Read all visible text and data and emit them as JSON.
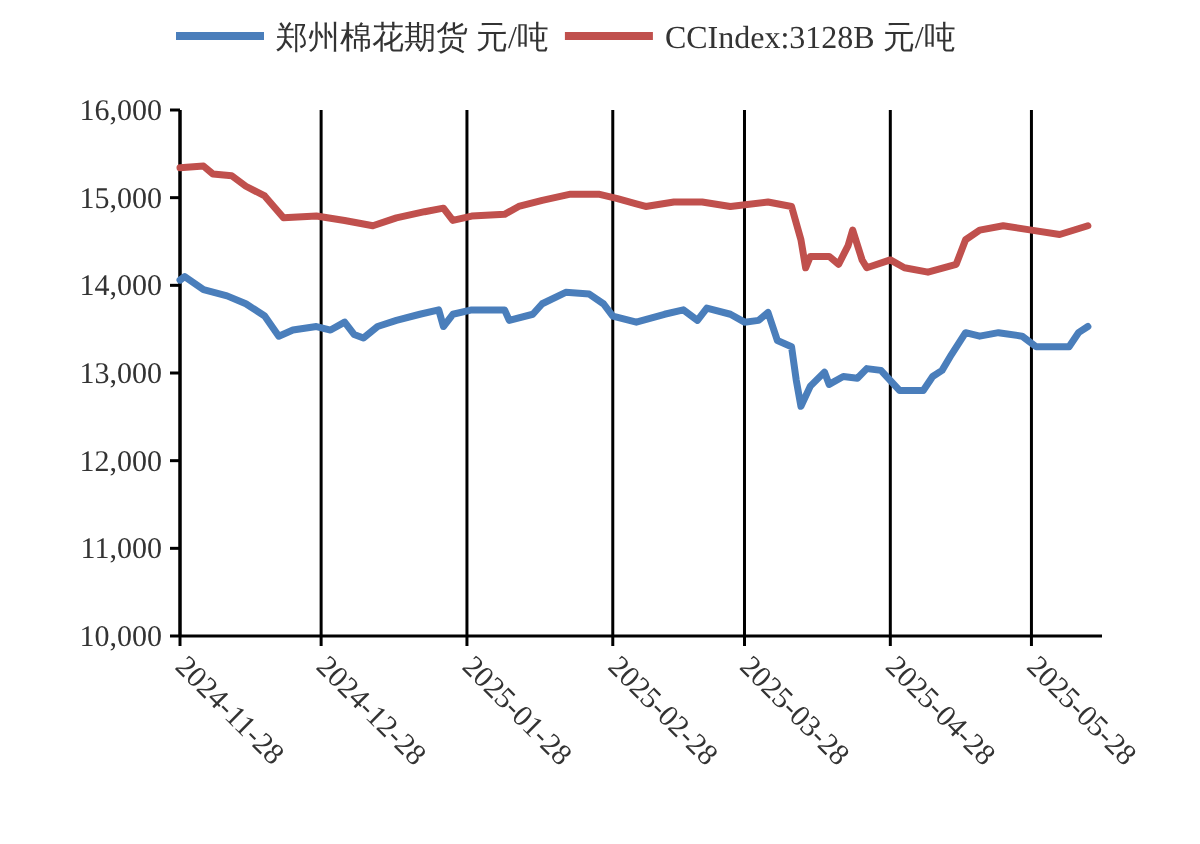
{
  "chart_data": {
    "type": "line",
    "legend": "top",
    "grid": "x",
    "line_style": "solid",
    "marker": "none",
    "xlim": [
      "2024-11-28",
      "2025-06-12"
    ],
    "xticks": [
      {
        "value": "2024-11-28",
        "label": "2024-11-28"
      },
      {
        "value": "2024-12-28",
        "label": "2024-12-28"
      },
      {
        "value": "2025-01-28",
        "label": "2025-01-28"
      },
      {
        "value": "2025-02-28",
        "label": "2025-02-28"
      },
      {
        "value": "2025-03-28",
        "label": "2025-03-28"
      },
      {
        "value": "2025-04-28",
        "label": "2025-04-28"
      },
      {
        "value": "2025-05-28",
        "label": "2025-05-28"
      }
    ],
    "ylim": [
      10000,
      16000
    ],
    "yticks": [
      {
        "value": 10000,
        "label": "10,000"
      },
      {
        "value": 11000,
        "label": "11,000"
      },
      {
        "value": 12000,
        "label": "12,000"
      },
      {
        "value": 13000,
        "label": "13,000"
      },
      {
        "value": 14000,
        "label": "14,000"
      },
      {
        "value": 15000,
        "label": "15,000"
      },
      {
        "value": 16000,
        "label": "16,000"
      }
    ],
    "series": [
      {
        "name": "郑州棉花期货 元/吨",
        "color": "#4a7ebb",
        "x": [
          "2024-11-28",
          "2024-11-29",
          "2024-12-03",
          "2024-12-08",
          "2024-12-12",
          "2024-12-16",
          "2024-12-19",
          "2024-12-22",
          "2024-12-27",
          "2024-12-30",
          "2025-01-02",
          "2025-01-04",
          "2025-01-06",
          "2025-01-09",
          "2025-01-13",
          "2025-01-18",
          "2025-01-22",
          "2025-01-23",
          "2025-01-25",
          "2025-01-29",
          "2025-02-05",
          "2025-02-06",
          "2025-02-11",
          "2025-02-13",
          "2025-02-18",
          "2025-02-23",
          "2025-02-26",
          "2025-02-28",
          "2025-03-05",
          "2025-03-11",
          "2025-03-15",
          "2025-03-18",
          "2025-03-20",
          "2025-03-25",
          "2025-03-28",
          "2025-03-31",
          "2025-04-02",
          "2025-04-04",
          "2025-04-07",
          "2025-04-08",
          "2025-04-09",
          "2025-04-11",
          "2025-04-14",
          "2025-04-15",
          "2025-04-18",
          "2025-04-21",
          "2025-04-23",
          "2025-04-26",
          "2025-04-30",
          "2025-05-05",
          "2025-05-07",
          "2025-05-09",
          "2025-05-11",
          "2025-05-14",
          "2025-05-17",
          "2025-05-21",
          "2025-05-26",
          "2025-05-29",
          "2025-06-05",
          "2025-06-07",
          "2025-06-09"
        ],
        "values": [
          14060,
          14100,
          13950,
          13880,
          13790,
          13650,
          13420,
          13490,
          13530,
          13490,
          13580,
          13440,
          13400,
          13530,
          13600,
          13670,
          13720,
          13530,
          13670,
          13720,
          13720,
          13600,
          13670,
          13790,
          13920,
          13900,
          13790,
          13650,
          13580,
          13670,
          13720,
          13600,
          13740,
          13670,
          13580,
          13600,
          13690,
          13370,
          13300,
          12920,
          12620,
          12850,
          13010,
          12870,
          12960,
          12940,
          13050,
          13030,
          12800,
          12800,
          12960,
          13030,
          13210,
          13460,
          13420,
          13460,
          13420,
          13300,
          13300,
          13460,
          13530
        ]
      },
      {
        "name": "CCIndex:3128B 元/吨",
        "color": "#c0504d",
        "x": [
          "2024-11-28",
          "2024-12-03",
          "2024-12-05",
          "2024-12-09",
          "2024-12-12",
          "2024-12-16",
          "2024-12-20",
          "2024-12-27",
          "2025-01-02",
          "2025-01-08",
          "2025-01-13",
          "2025-01-19",
          "2025-01-23",
          "2025-01-25",
          "2025-01-29",
          "2025-02-05",
          "2025-02-08",
          "2025-02-13",
          "2025-02-19",
          "2025-02-25",
          "2025-03-01",
          "2025-03-05",
          "2025-03-07",
          "2025-03-13",
          "2025-03-19",
          "2025-03-25",
          "2025-04-02",
          "2025-04-07",
          "2025-04-09",
          "2025-04-10",
          "2025-04-11",
          "2025-04-15",
          "2025-04-17",
          "2025-04-19",
          "2025-04-20",
          "2025-04-22",
          "2025-04-23",
          "2025-04-28",
          "2025-05-01",
          "2025-05-06",
          "2025-05-12",
          "2025-05-14",
          "2025-05-17",
          "2025-05-22",
          "2025-05-28",
          "2025-06-03",
          "2025-06-09"
        ],
        "values": [
          15340,
          15360,
          15270,
          15250,
          15130,
          15020,
          14770,
          14790,
          14740,
          14680,
          14770,
          14840,
          14880,
          14740,
          14790,
          14810,
          14900,
          14970,
          15040,
          15040,
          14990,
          14930,
          14900,
          14950,
          14950,
          14900,
          14950,
          14900,
          14520,
          14200,
          14330,
          14330,
          14240,
          14450,
          14630,
          14290,
          14200,
          14290,
          14200,
          14150,
          14240,
          14520,
          14630,
          14680,
          14630,
          14580,
          14680
        ]
      }
    ]
  }
}
